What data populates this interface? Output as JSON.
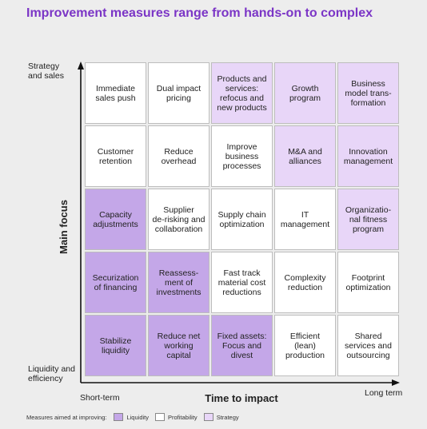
{
  "title": "Improvement measures range from hands-on to complex",
  "y_axis": {
    "title": "Main focus",
    "top_label": "Strategy\nand sales",
    "bottom_label": "Liquidity and\nefficiency"
  },
  "x_axis": {
    "title": "Time to impact",
    "left_label": "Short-term",
    "right_label": "Long term"
  },
  "colors": {
    "liquidity": "#c4a7e8",
    "profitability": "#ffffff",
    "strategy": "#e8d6f8"
  },
  "matrix": [
    [
      {
        "text": "Immediate\nsales push",
        "category": "profitability"
      },
      {
        "text": "Dual impact\npricing",
        "category": "profitability"
      },
      {
        "text": "Products and\nservices:\nrefocus and\nnew products",
        "category": "strategy"
      },
      {
        "text": "Growth\nprogram",
        "category": "strategy"
      },
      {
        "text": "Business\nmodel trans-\nformation",
        "category": "strategy"
      }
    ],
    [
      {
        "text": "Customer\nretention",
        "category": "profitability"
      },
      {
        "text": "Reduce\noverhead",
        "category": "profitability"
      },
      {
        "text": "Improve\nbusiness\nprocesses",
        "category": "profitability"
      },
      {
        "text": "M&A and\nalliances",
        "category": "strategy"
      },
      {
        "text": "Innovation\nmanagement",
        "category": "strategy"
      }
    ],
    [
      {
        "text": "Capacity\nadjustments",
        "category": "liquidity"
      },
      {
        "text": "Supplier\nde-risking and\ncollaboration",
        "category": "profitability"
      },
      {
        "text": "Supply chain\noptimization",
        "category": "profitability"
      },
      {
        "text": "IT\nmanagement",
        "category": "profitability"
      },
      {
        "text": "Organizatio-\nnal fitness\nprogram",
        "category": "strategy"
      }
    ],
    [
      {
        "text": "Securization\nof financing",
        "category": "liquidity"
      },
      {
        "text": "Reassess-\nment of\ninvestments",
        "category": "liquidity"
      },
      {
        "text": "Fast track\nmaterial cost\nreductions",
        "category": "profitability"
      },
      {
        "text": "Complexity\nreduction",
        "category": "profitability"
      },
      {
        "text": "Footprint\noptimization",
        "category": "profitability"
      }
    ],
    [
      {
        "text": "Stabilize\nliquidity",
        "category": "liquidity"
      },
      {
        "text": "Reduce net\nworking\ncapital",
        "category": "liquidity"
      },
      {
        "text": "Fixed assets:\nFocus and\ndivest",
        "category": "liquidity"
      },
      {
        "text": "Efficient\n(lean)\nproduction",
        "category": "profitability"
      },
      {
        "text": "Shared\nservices and\noutsourcing",
        "category": "profitability"
      }
    ]
  ],
  "legend": {
    "intro": "Measures aimed at improving:",
    "items": [
      {
        "key": "liquidity",
        "label": "Liquidity"
      },
      {
        "key": "profitability",
        "label": "Profitability"
      },
      {
        "key": "strategy",
        "label": "Strategy"
      }
    ]
  }
}
